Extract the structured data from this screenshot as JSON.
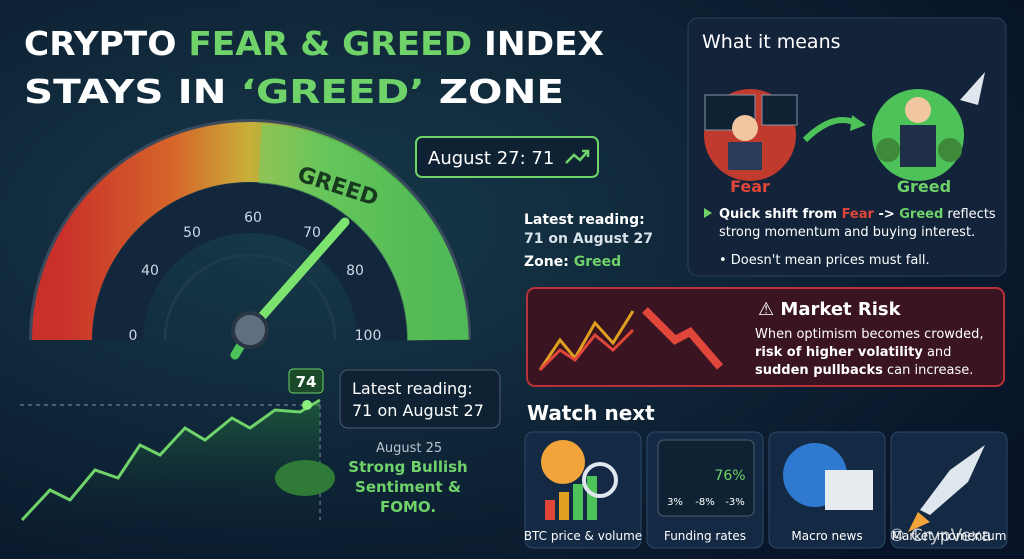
{
  "title": {
    "line1": [
      "CRYPTO ",
      "FEAR & GREED",
      " INDEX"
    ],
    "line2": [
      "STAYS IN ",
      "‘GREED’",
      " ZONE"
    ]
  },
  "gauge": {
    "ticks": [
      0,
      40,
      50,
      60,
      70,
      80,
      100
    ],
    "zone_label": "GREED",
    "callout": "August 27: 71",
    "reading_label": "Latest reading:",
    "reading_value": "71 on August 27",
    "zone": [
      "Zone: ",
      "Greed"
    ]
  },
  "trend": {
    "peak": "74",
    "reading_label": "Latest reading:",
    "reading_value": "71 on August 27",
    "date": "August 25",
    "note": [
      "Strong Bullish",
      "Sentiment &",
      "FOMO."
    ]
  },
  "meaning": {
    "heading": "What it means",
    "fear": "Fear",
    "greed": "Greed",
    "bullet1": [
      "Quick shift from ",
      "Fear",
      " -> ",
      "Greed",
      " reflects",
      "strong momentum and buying interest."
    ],
    "bullet2": "• Doesn't mean prices must fall."
  },
  "risk": {
    "heading": "⚠ Market Risk",
    "lines": [
      "When optimism becomes crowded,",
      "risk of higher volatility",
      " and",
      "sudden pullbacks",
      " can increase."
    ]
  },
  "watch": {
    "heading": "Watch next",
    "items": [
      "BTC price & volume",
      "Funding rates",
      "Macro news",
      "Market momentum"
    ],
    "funding": [
      "76%",
      "3%",
      "-8%",
      "-3%"
    ]
  },
  "watermark": "CrypVexa"
}
